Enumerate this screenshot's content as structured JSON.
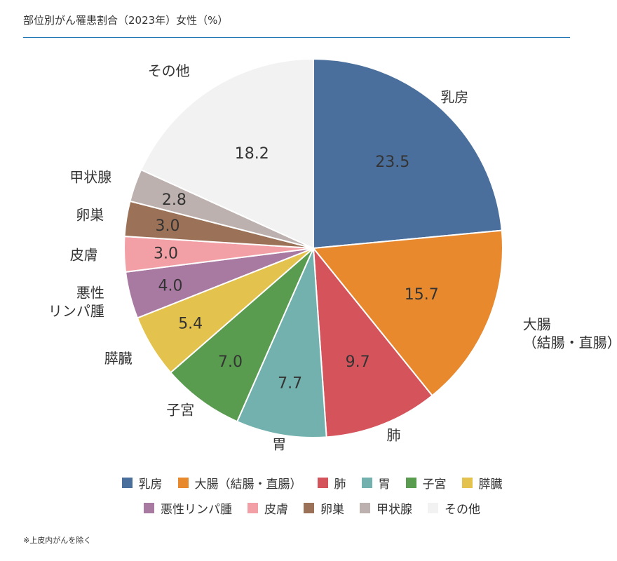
{
  "title": "部位別がん罹患割合（2023年）女性（%）",
  "footnote": "※上皮内がんを除く",
  "chart_data": {
    "type": "pie",
    "title": "部位別がん罹患割合（2023年）女性（%）",
    "unit": "%",
    "slices": [
      {
        "name": "乳房",
        "value": 23.5,
        "color": "#4a6f9c"
      },
      {
        "name": "大腸（結腸・直腸）",
        "value": 15.7,
        "color": "#e8892e"
      },
      {
        "name": "肺",
        "value": 9.7,
        "color": "#d5545c"
      },
      {
        "name": "胃",
        "value": 7.7,
        "color": "#72b1ad"
      },
      {
        "name": "子宮",
        "value": 7.0,
        "color": "#5a9c4f"
      },
      {
        "name": "膵臓",
        "value": 5.4,
        "color": "#e3c34d"
      },
      {
        "name": "悪性リンパ腫",
        "value": 4.0,
        "color": "#a87aa2"
      },
      {
        "name": "皮膚",
        "value": 3.0,
        "color": "#f2a0a6"
      },
      {
        "name": "卵巣",
        "value": 3.0,
        "color": "#9b7258"
      },
      {
        "name": "甲状腺",
        "value": 2.8,
        "color": "#bcb1ae"
      },
      {
        "name": "その他",
        "value": 18.2,
        "color": "#f2f2f2"
      }
    ],
    "slice_labels": [
      [
        "乳房"
      ],
      [
        "大腸",
        "（結腸・直腸）"
      ],
      [
        "肺"
      ],
      [
        "胃"
      ],
      [
        "子宮"
      ],
      [
        "膵臓"
      ],
      [
        "悪性",
        "リンパ腫"
      ],
      [
        "皮膚"
      ],
      [
        "卵巣"
      ],
      [
        "甲状腺"
      ],
      [
        "その他"
      ]
    ],
    "legend_position": "bottom"
  }
}
